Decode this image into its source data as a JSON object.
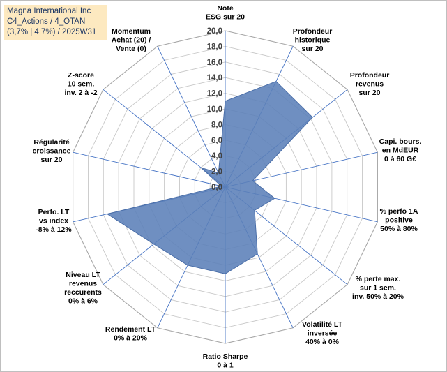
{
  "title_box": {
    "line1": "Magna International Inc",
    "line2": "C4_Actions / 4_OTAN",
    "line3": "(3,7% | 4,7%) / 2025W31"
  },
  "chart_data": {
    "type": "radar",
    "title": "Magna International Inc",
    "subtitle": "C4_Actions / 4_OTAN (3,7% | 4,7%) / 2025W31",
    "axes": [
      [
        "Note",
        "ESG sur 20"
      ],
      [
        "Profondeur",
        "historique",
        "sur 20"
      ],
      [
        "Profondeur",
        "revenus",
        "sur 20"
      ],
      [
        "Capi. bours.",
        "en MdEUR",
        "0 à 60 G€"
      ],
      [
        "% perfo 1A",
        "positive",
        "50% à 80%"
      ],
      [
        "% perte max.",
        "sur 1 sem.",
        "inv. 50% à 20%"
      ],
      [
        "Volatilité LT",
        "inversée",
        "40% à 0%"
      ],
      [
        "Ratio Sharpe",
        "0 à 1"
      ],
      [
        "Rendement LT",
        "0% à 20%"
      ],
      [
        "Niveau LT",
        "revenus",
        "reccurents",
        "0% à 6%"
      ],
      [
        "Perfo. LT",
        "vs index",
        "-8% à 12%"
      ],
      [
        "Régularité",
        "croissance",
        "sur 20"
      ],
      [
        "Z-score",
        "10 sem.",
        "inv. 2 à -2"
      ],
      [
        "Momentum",
        "Achat (20) /",
        "Vente (0)"
      ]
    ],
    "tick_labels": [
      "0,0",
      "2,0",
      "4,0",
      "6,0",
      "8,0",
      "10,0",
      "12,0",
      "14,0",
      "16,0",
      "18,0",
      "20,0"
    ],
    "rmin": 0,
    "rmax": 20,
    "grid": true,
    "series": [
      {
        "values": [
          11.0,
          15.0,
          14.3,
          3.6,
          6.5,
          4.8,
          9.5,
          11.1,
          11.1,
          11.7,
          15.5,
          0.5,
          4.0,
          2.0
        ]
      }
    ],
    "colors": {
      "fill": "#5b80b8",
      "stroke": "#4a6ea8",
      "spokes": "#4472c4",
      "grid": "#c8c8c8",
      "outer": "#a6a6a6"
    }
  }
}
